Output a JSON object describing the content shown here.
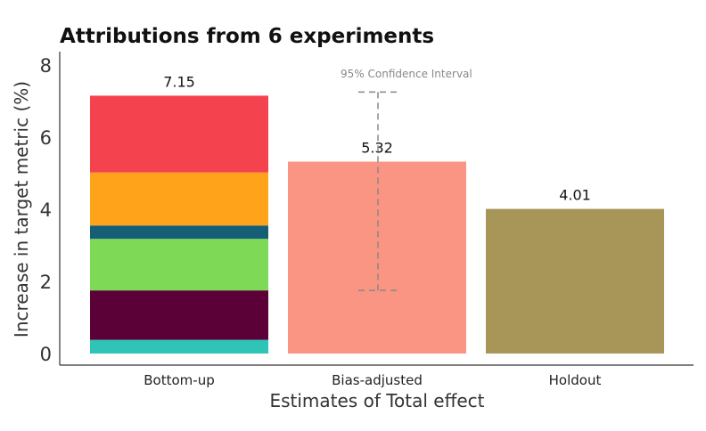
{
  "chart_data": {
    "type": "bar",
    "title": "Attributions from 6 experiments",
    "xlabel": "Estimates of Total effect",
    "ylabel": "Increase in target metric (%)",
    "ylim": [
      0,
      8.3
    ],
    "yticks": [
      0,
      2,
      4,
      6,
      8
    ],
    "categories": [
      "Bottom-up",
      "Bias-adjusted",
      "Holdout"
    ],
    "totals": [
      7.15,
      5.32,
      4.01
    ],
    "data_labels": [
      "7.15",
      "5.32",
      "4.01"
    ],
    "stacked_segments": [
      {
        "category": "Bottom-up",
        "from": 0.0,
        "to": 0.38,
        "color": "#2ec4b6"
      },
      {
        "category": "Bottom-up",
        "from": 0.38,
        "to": 1.75,
        "color": "#5c0038"
      },
      {
        "category": "Bottom-up",
        "from": 1.75,
        "to": 3.18,
        "color": "#7ed957"
      },
      {
        "category": "Bottom-up",
        "from": 3.18,
        "to": 3.55,
        "color": "#155e75"
      },
      {
        "category": "Bottom-up",
        "from": 3.55,
        "to": 5.02,
        "color": "#ffa31a"
      },
      {
        "category": "Bottom-up",
        "from": 5.02,
        "to": 7.15,
        "color": "#f4434f"
      }
    ],
    "bar_colors": {
      "Bias-adjusted": "#f99582",
      "Holdout": "#a89558"
    },
    "confidence_interval": {
      "category": "Bias-adjusted",
      "low": 1.75,
      "high": 7.25,
      "label": "95% Confidence Interval"
    },
    "grid": false
  }
}
